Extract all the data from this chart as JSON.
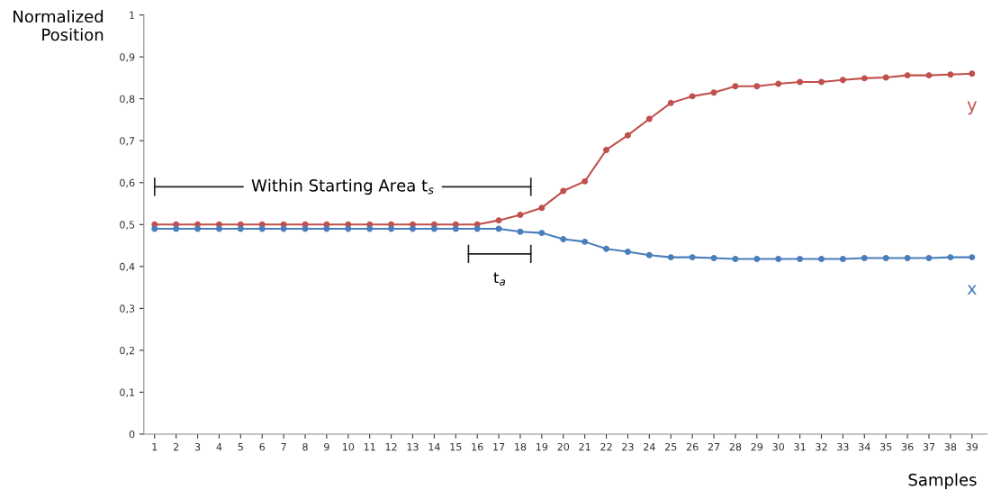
{
  "chart_data": {
    "type": "line",
    "xlabel": "Samples",
    "ylabel": "Normalized\nPosition",
    "x": [
      1,
      2,
      3,
      4,
      5,
      6,
      7,
      8,
      9,
      10,
      11,
      12,
      13,
      14,
      15,
      16,
      17,
      18,
      19,
      20,
      21,
      22,
      23,
      24,
      25,
      26,
      27,
      28,
      29,
      30,
      31,
      32,
      33,
      34,
      35,
      36,
      37,
      38,
      39
    ],
    "series": [
      {
        "name": "y",
        "color": "#c0504d",
        "values": [
          0.5,
          0.5,
          0.5,
          0.5,
          0.5,
          0.5,
          0.5,
          0.5,
          0.5,
          0.5,
          0.5,
          0.5,
          0.5,
          0.5,
          0.5,
          0.5,
          0.51,
          0.523,
          0.54,
          0.58,
          0.603,
          0.678,
          0.713,
          0.752,
          0.79,
          0.806,
          0.815,
          0.83,
          0.83,
          0.836,
          0.84,
          0.84,
          0.845,
          0.849,
          0.851,
          0.856,
          0.856,
          0.858,
          0.86
        ]
      },
      {
        "name": "x",
        "color": "#4a7ebb",
        "values": [
          0.49,
          0.49,
          0.49,
          0.49,
          0.49,
          0.49,
          0.49,
          0.49,
          0.49,
          0.49,
          0.49,
          0.49,
          0.49,
          0.49,
          0.49,
          0.49,
          0.49,
          0.483,
          0.48,
          0.465,
          0.459,
          0.442,
          0.435,
          0.427,
          0.422,
          0.422,
          0.42,
          0.418,
          0.418,
          0.418,
          0.418,
          0.418,
          0.418,
          0.42,
          0.42,
          0.42,
          0.42,
          0.422,
          0.422
        ]
      }
    ],
    "xlim": [
      0.5,
      39.7
    ],
    "xticks": [
      1,
      2,
      3,
      4,
      5,
      6,
      7,
      8,
      9,
      10,
      11,
      12,
      13,
      14,
      15,
      16,
      17,
      18,
      19,
      20,
      21,
      22,
      23,
      24,
      25,
      26,
      27,
      28,
      29,
      30,
      31,
      32,
      33,
      34,
      35,
      36,
      37,
      38,
      39
    ],
    "ylim": [
      0,
      1
    ],
    "yticks": [
      0,
      {
        "value": 0.1,
        "label": "0,1"
      },
      {
        "value": 0.2,
        "label": "0,2"
      },
      {
        "value": 0.3,
        "label": "0,3"
      },
      {
        "value": 0.4,
        "label": "0,4"
      },
      {
        "value": 0.5,
        "label": "0,5"
      },
      {
        "value": 0.6,
        "label": "0,6"
      },
      {
        "value": 0.7,
        "label": "0,7"
      },
      {
        "value": 0.8,
        "label": "0,8"
      },
      {
        "value": 0.9,
        "label": "0,9"
      },
      1
    ],
    "annotations": [
      "Within Starting Area t$_{s}$",
      "t$_{a}$"
    ],
    "marker": "circle",
    "line_style": "solid",
    "grid": false,
    "legend": false
  }
}
